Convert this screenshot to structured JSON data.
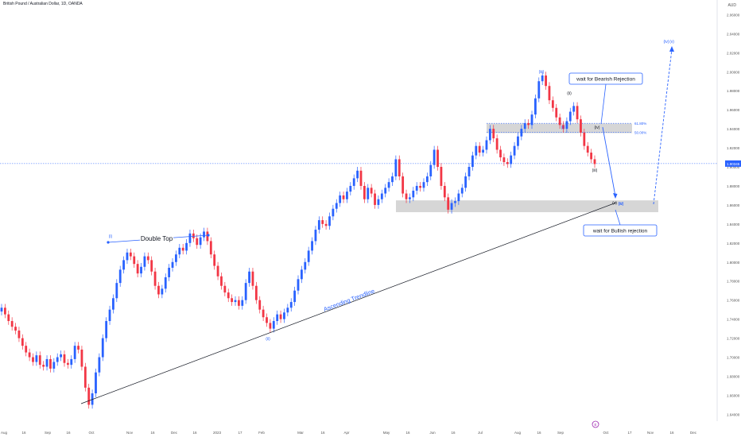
{
  "header": {
    "symbol": "British Pound / Australian Dollar, 1D, OANDA",
    "currency": "AUD"
  },
  "colors": {
    "up": "#2962ff",
    "down": "#f23645",
    "wave": "#2962ff",
    "zone": "#c8c8c8"
  },
  "chart_data": {
    "type": "candlestick",
    "ylim": [
      1.632,
      2.072
    ],
    "y_ticks": [
      "2.06000",
      "2.04000",
      "2.02000",
      "2.00000",
      "1.98000",
      "1.96000",
      "1.94000",
      "1.92000",
      "1.90000",
      "1.88000",
      "1.86000",
      "1.84000",
      "1.82000",
      "1.80000",
      "1.78000",
      "1.76000",
      "1.74000",
      "1.72000",
      "1.70000",
      "1.68000",
      "1.66000",
      "1.64000"
    ],
    "x_ticks": [
      "Aug",
      "16",
      "Sep",
      "16",
      "Oct",
      "Nov",
      "16",
      "Dec",
      "16",
      "2023",
      "17",
      "Feb",
      "Mar",
      "16",
      "Apr",
      "May",
      "16",
      "Jun",
      "16",
      "Jul",
      "Aug",
      "16",
      "Sep",
      "Oct",
      "17",
      "Nov",
      "16",
      "Dec"
    ],
    "last_price": "1.90345",
    "price_path": [
      [
        1.752,
        1.745,
        1.738,
        1.732,
        1.728,
        1.72,
        1.712,
        1.705,
        1.7,
        1.695,
        1.702,
        1.692,
        1.69,
        1.698,
        1.688,
        1.695,
        1.7,
        1.703,
        1.694,
        1.692,
        1.698,
        1.712,
        1.708,
        1.69,
        1.668,
        1.65,
        1.662,
        1.684,
        1.7,
        1.72,
        1.738,
        1.75,
        1.762,
        1.778,
        1.792,
        1.802,
        1.81,
        1.806,
        1.798,
        1.788,
        1.795,
        1.806,
        1.802,
        1.79,
        1.775,
        1.766,
        1.772,
        1.784,
        1.794,
        1.8,
        1.808,
        1.815,
        1.812,
        1.82,
        1.83,
        1.825,
        1.818,
        1.826,
        1.832,
        1.822,
        1.808,
        1.796,
        1.785,
        1.775,
        1.768,
        1.762,
        1.758,
        1.76,
        1.754,
        1.76,
        1.778,
        1.79,
        1.775,
        1.76,
        1.75,
        1.742,
        1.736,
        1.73,
        1.738,
        1.745,
        1.74,
        1.747,
        1.752,
        1.758,
        1.77,
        1.782,
        1.792,
        1.8,
        1.812,
        1.822,
        1.834,
        1.844,
        1.84,
        1.838,
        1.848,
        1.856,
        1.862,
        1.87,
        1.866,
        1.874,
        1.88,
        1.888,
        1.896,
        1.88,
        1.866,
        1.878,
        1.872,
        1.86,
        1.866,
        1.872,
        1.878,
        1.884,
        1.89,
        1.908,
        1.89,
        1.872,
        1.866,
        1.868,
        1.875,
        1.88,
        1.878,
        1.884,
        1.89,
        1.902,
        1.918,
        1.9,
        1.88,
        1.868,
        1.855,
        1.862,
        1.864,
        1.872,
        1.878,
        1.89,
        1.9,
        1.912,
        1.922,
        1.915,
        1.918,
        1.928,
        1.94,
        1.93,
        1.918,
        1.91,
        1.905,
        1.903,
        1.912,
        1.922,
        1.932,
        1.94,
        1.946,
        1.944,
        1.955,
        1.972,
        1.99,
        1.996,
        1.985,
        1.97,
        1.962,
        1.952,
        1.944,
        1.94,
        1.948,
        1.958,
        1.964,
        1.95,
        1.936,
        1.922,
        1.915,
        1.908,
        1.903
      ],
      [
        1.752,
        1.742,
        1.744,
        1.728,
        1.722,
        1.716,
        1.705,
        1.7,
        1.692,
        1.695,
        1.694,
        1.69,
        1.694,
        1.689,
        1.698,
        1.7,
        1.707,
        1.7,
        1.69,
        1.693,
        1.708,
        1.714,
        1.702,
        1.68,
        1.664,
        1.649,
        1.67,
        1.69,
        1.711,
        1.731,
        1.741,
        1.755,
        1.77,
        1.785,
        1.796,
        1.807,
        1.81,
        1.801,
        1.794,
        1.79,
        1.798,
        1.806,
        1.798,
        1.786,
        1.77,
        1.766,
        1.777,
        1.791,
        1.8,
        1.8,
        1.808,
        1.816,
        1.816,
        1.822,
        1.83,
        1.822,
        1.821,
        1.829,
        1.827,
        1.816,
        1.805,
        1.792,
        1.78,
        1.771,
        1.768,
        1.76,
        1.758,
        1.758,
        1.758,
        1.767,
        1.783,
        1.785,
        1.769,
        1.755,
        1.748,
        1.742,
        1.736,
        1.738,
        1.744,
        1.745,
        1.746,
        1.749,
        1.752,
        1.762,
        1.777,
        1.787,
        1.796,
        1.806,
        1.818,
        1.827,
        1.838,
        1.844,
        1.843,
        1.843,
        1.851,
        1.861,
        1.866,
        1.869,
        1.871,
        1.875,
        1.884,
        1.892,
        1.891,
        1.875,
        1.87,
        1.878,
        1.867,
        1.863,
        1.869,
        1.873,
        1.883,
        1.889,
        1.898,
        1.904,
        1.885,
        1.87,
        1.864,
        1.869,
        1.876,
        1.879,
        1.878,
        1.887,
        1.895,
        1.907,
        1.913,
        1.893,
        1.873,
        1.865,
        1.855,
        1.863,
        1.864,
        1.875,
        1.883,
        1.894,
        1.906,
        1.918,
        1.922,
        1.916,
        1.924,
        1.933,
        1.936,
        1.93,
        1.917,
        1.905,
        1.908,
        1.907,
        1.914,
        1.923,
        1.935,
        1.941,
        1.946,
        1.945,
        1.962,
        1.98,
        1.994,
        1.992,
        1.983,
        1.966,
        1.96,
        1.95,
        1.942,
        1.94,
        1.952,
        1.96,
        1.963,
        1.95,
        1.931,
        1.918,
        1.912,
        1.908,
        1.903
      ]
    ],
    "zones": [
      {
        "name": "upper-zone",
        "y1": 1.9455,
        "y2": 1.9355
      },
      {
        "name": "lower-zone",
        "y1": 1.8648,
        "y2": 1.8524
      }
    ],
    "fib_levels": [
      {
        "label": "61.80%",
        "y": 1.9458
      },
      {
        "label": "50.00%",
        "y": 1.9363
      }
    ],
    "trendline": {
      "label": "Ascending Trendline",
      "from": [
        102,
        1.65
      ],
      "to": [
        182,
        1.8625
      ]
    },
    "double_top": {
      "label": "Double Top",
      "y": 1.8285
    },
    "wave_labels": [
      "(i)",
      "(ii)",
      "(iii)",
      "(i)",
      "(ii)",
      "(iii)",
      "(iv)",
      "(iii)",
      "(iv)",
      "(v)",
      "(v)",
      "(iv)"
    ],
    "callouts": [
      "wait for Bearish Rejection",
      "wait for Bullish rejection"
    ],
    "event_marker": "E"
  }
}
